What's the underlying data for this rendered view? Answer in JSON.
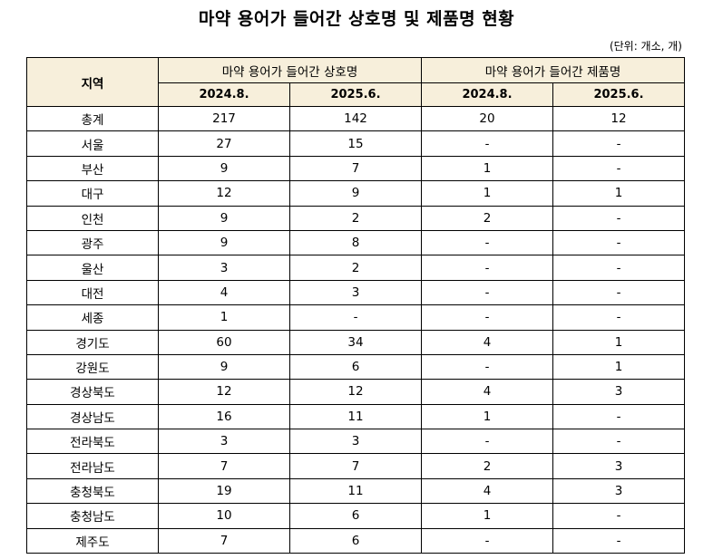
{
  "title": "마약 용어가 들어간 상호명 및 제품명 현황",
  "unit_note": "(단위: 개소, 개)",
  "table": {
    "region_header": "지역",
    "groups": [
      {
        "label": "마약 용어가 들어간 상호명",
        "periods": [
          "2024.8.",
          "2025.6."
        ]
      },
      {
        "label": "마약 용어가 들어간 제품명",
        "periods": [
          "2024.8.",
          "2025.6."
        ]
      }
    ],
    "rows": [
      {
        "region": "총계",
        "values": [
          "217",
          "142",
          "20",
          "12"
        ]
      },
      {
        "region": "서울",
        "values": [
          "27",
          "15",
          "-",
          "-"
        ]
      },
      {
        "region": "부산",
        "values": [
          "9",
          "7",
          "1",
          "-"
        ]
      },
      {
        "region": "대구",
        "values": [
          "12",
          "9",
          "1",
          "1"
        ]
      },
      {
        "region": "인천",
        "values": [
          "9",
          "2",
          "2",
          "-"
        ]
      },
      {
        "region": "광주",
        "values": [
          "9",
          "8",
          "-",
          "-"
        ]
      },
      {
        "region": "울산",
        "values": [
          "3",
          "2",
          "-",
          "-"
        ]
      },
      {
        "region": "대전",
        "values": [
          "4",
          "3",
          "-",
          "-"
        ]
      },
      {
        "region": "세종",
        "values": [
          "1",
          "-",
          "-",
          "-"
        ]
      },
      {
        "region": "경기도",
        "values": [
          "60",
          "34",
          "4",
          "1"
        ]
      },
      {
        "region": "강원도",
        "values": [
          "9",
          "6",
          "-",
          "1"
        ]
      },
      {
        "region": "경상북도",
        "values": [
          "12",
          "12",
          "4",
          "3"
        ]
      },
      {
        "region": "경상남도",
        "values": [
          "16",
          "11",
          "1",
          "-"
        ]
      },
      {
        "region": "전라북도",
        "values": [
          "3",
          "3",
          "-",
          "-"
        ]
      },
      {
        "region": "전라남도",
        "values": [
          "7",
          "7",
          "2",
          "3"
        ]
      },
      {
        "region": "충청북도",
        "values": [
          "19",
          "11",
          "4",
          "3"
        ]
      },
      {
        "region": "충청남도",
        "values": [
          "10",
          "6",
          "1",
          "-"
        ]
      },
      {
        "region": "제주도",
        "values": [
          "7",
          "6",
          "-",
          "-"
        ]
      }
    ]
  },
  "colors": {
    "header_bg": "#f7efdb",
    "border": "#000000"
  }
}
